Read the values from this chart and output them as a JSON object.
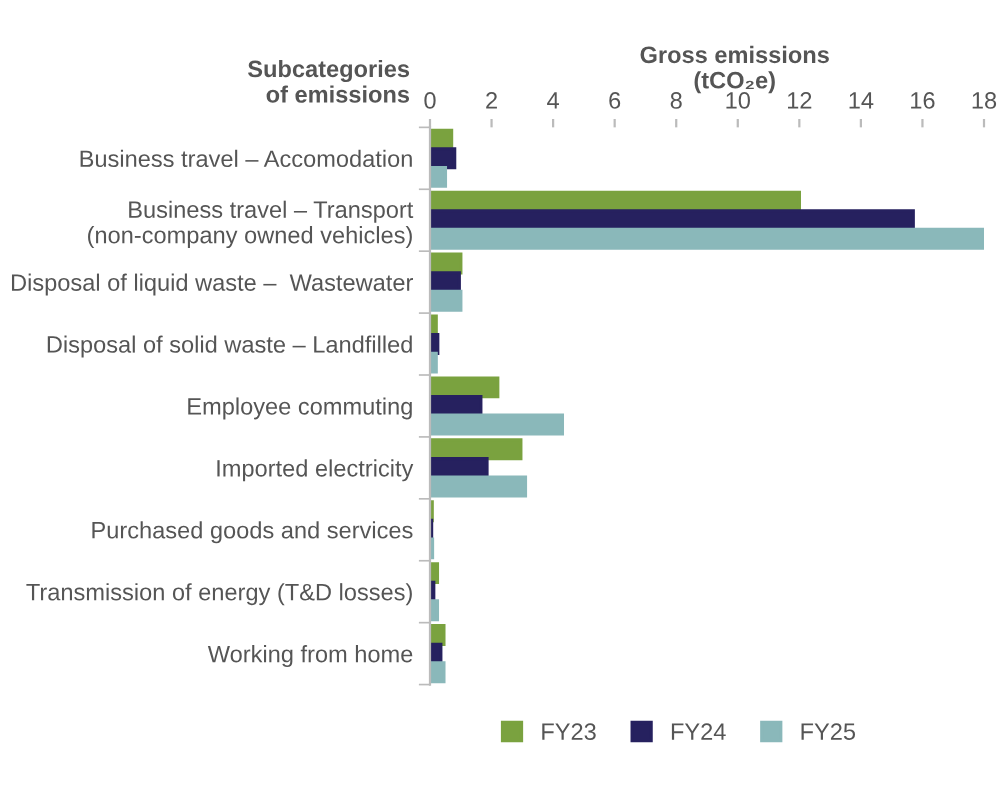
{
  "chart_data": {
    "type": "bar",
    "orientation": "horizontal",
    "xlabel": "Gross emissions\n(tCO₂e)",
    "ylabel": "Subcategories\nof emissions",
    "categories": [
      "Business travel – Accomodation",
      "Business travel – Transport\n(non-company owned vehicles)",
      "Disposal of liquid waste –  Wastewater",
      "Disposal of solid waste – Landfilled",
      "Employee commuting",
      "Imported electricity",
      "Purchased goods and services",
      "Transmission of energy (T&D losses)",
      "Working from home"
    ],
    "series": [
      {
        "name": "FY23",
        "color": "#7aa23f",
        "values": [
          0.7,
          12.0,
          1.0,
          0.2,
          2.2,
          2.95,
          0.07,
          0.24,
          0.45
        ]
      },
      {
        "name": "FY24",
        "color": "#26215f",
        "values": [
          0.8,
          15.7,
          0.95,
          0.25,
          1.65,
          1.85,
          0.05,
          0.12,
          0.35
        ]
      },
      {
        "name": "FY25",
        "color": "#8ab8ba",
        "values": [
          0.5,
          18.0,
          1.0,
          0.2,
          4.3,
          3.1,
          0.08,
          0.24,
          0.45
        ]
      }
    ],
    "xlim": [
      0,
      18
    ],
    "xticks": [
      0,
      2,
      4,
      6,
      8,
      10,
      12,
      14,
      16,
      18
    ],
    "grid": false,
    "legend": "bottom"
  }
}
